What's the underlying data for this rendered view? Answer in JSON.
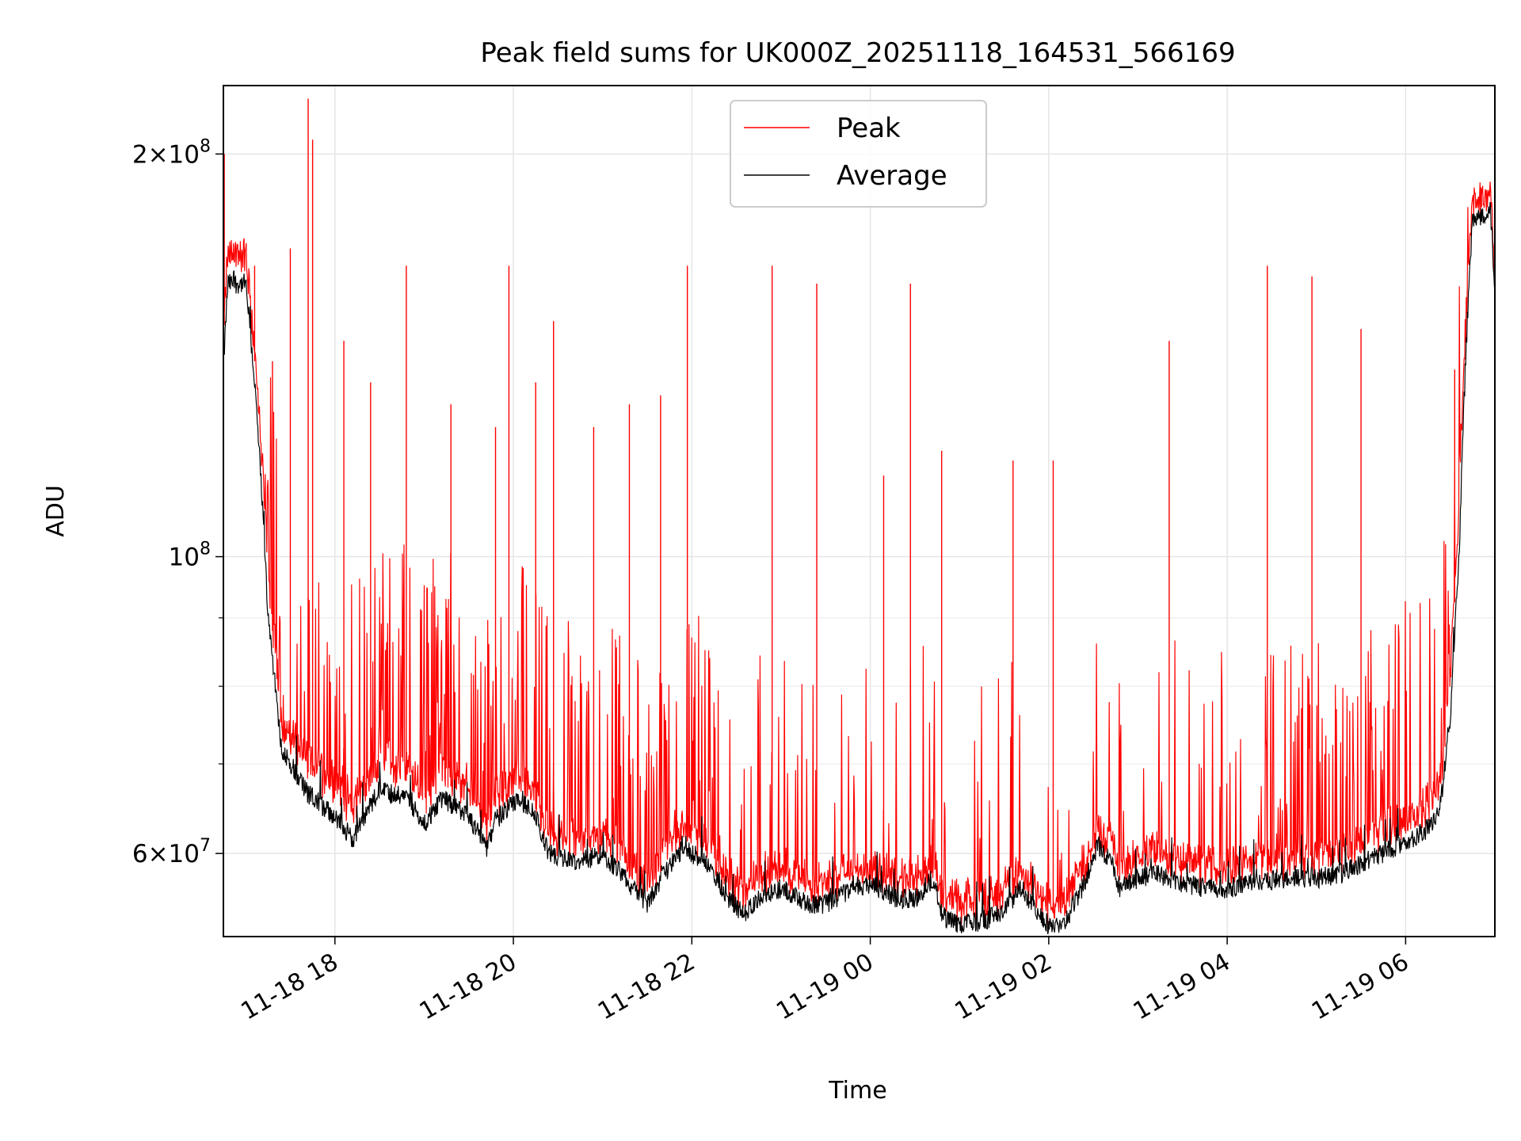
{
  "chart_data": {
    "type": "line",
    "title": "Peak field sums for UK000Z_20251118_164531_566169",
    "xlabel": "Time",
    "ylabel": "ADU",
    "yscale": "log",
    "ylim": [
      52000000,
      225000000
    ],
    "xlim_hours": [
      16.75,
      31.0
    ],
    "grid": true,
    "legend_loc": "upper center",
    "x_ticks": [
      {
        "hour": 18,
        "label": "11-18 18"
      },
      {
        "hour": 20,
        "label": "11-18 20"
      },
      {
        "hour": 22,
        "label": "11-18 22"
      },
      {
        "hour": 24,
        "label": "11-19 00"
      },
      {
        "hour": 26,
        "label": "11-19 02"
      },
      {
        "hour": 28,
        "label": "11-19 04"
      },
      {
        "hour": 30,
        "label": "11-19 06"
      }
    ],
    "y_major_ticks": [
      {
        "value": 60000000,
        "mant": "6",
        "exp": "7"
      },
      {
        "value": 100000000,
        "mant": "",
        "exp": "8"
      },
      {
        "value": 200000000,
        "mant": "2",
        "exp": "8"
      }
    ],
    "y_minor_gridlines": [
      70000000,
      80000000,
      90000000
    ],
    "series": [
      {
        "name": "Peak",
        "color": "#ff0000",
        "baseline": [
          [
            16.75,
            145000000
          ],
          [
            16.8,
            165000000
          ],
          [
            17.0,
            165000000
          ],
          [
            17.1,
            140000000
          ],
          [
            17.25,
            95000000
          ],
          [
            17.4,
            74000000
          ],
          [
            17.7,
            69000000
          ],
          [
            18.0,
            66500000
          ],
          [
            18.2,
            64000000
          ],
          [
            18.5,
            69000000
          ],
          [
            18.8,
            68000000
          ],
          [
            19.0,
            65000000
          ],
          [
            19.2,
            68000000
          ],
          [
            19.5,
            66000000
          ],
          [
            19.7,
            62000000
          ],
          [
            19.8,
            65000000
          ],
          [
            20.0,
            66500000
          ],
          [
            20.2,
            66000000
          ],
          [
            20.4,
            61000000
          ],
          [
            20.7,
            60000000
          ],
          [
            21.0,
            61000000
          ],
          [
            21.3,
            58000000
          ],
          [
            21.5,
            55500000
          ],
          [
            21.7,
            59000000
          ],
          [
            21.9,
            61500000
          ],
          [
            22.2,
            60000000
          ],
          [
            22.4,
            56500000
          ],
          [
            22.6,
            55000000
          ],
          [
            22.8,
            57000000
          ],
          [
            23.0,
            57500000
          ],
          [
            23.3,
            56000000
          ],
          [
            23.5,
            56000000
          ],
          [
            23.8,
            57000000
          ],
          [
            24.0,
            57500000
          ],
          [
            24.3,
            56500000
          ],
          [
            24.5,
            56500000
          ],
          [
            24.7,
            58000000
          ],
          [
            24.8,
            55000000
          ],
          [
            25.0,
            54000000
          ],
          [
            25.3,
            54500000
          ],
          [
            25.5,
            55500000
          ],
          [
            25.7,
            57000000
          ],
          [
            25.8,
            56000000
          ],
          [
            26.0,
            54000000
          ],
          [
            26.2,
            54500000
          ],
          [
            26.4,
            58000000
          ],
          [
            26.55,
            61500000
          ],
          [
            26.7,
            60000000
          ],
          [
            26.8,
            57500000
          ],
          [
            27.0,
            58500000
          ],
          [
            27.2,
            59000000
          ],
          [
            27.5,
            58000000
          ],
          [
            27.8,
            57500000
          ],
          [
            28.0,
            57500000
          ],
          [
            28.3,
            58000000
          ],
          [
            28.6,
            58500000
          ],
          [
            29.0,
            58500000
          ],
          [
            29.3,
            59000000
          ],
          [
            29.6,
            60500000
          ],
          [
            30.0,
            62000000
          ],
          [
            30.3,
            64000000
          ],
          [
            30.4,
            68000000
          ],
          [
            30.5,
            80000000
          ],
          [
            30.6,
            105000000
          ],
          [
            30.7,
            160000000
          ],
          [
            30.75,
            180000000
          ],
          [
            30.95,
            185000000
          ],
          [
            31.0,
            160000000
          ]
        ],
        "spikes": [
          [
            16.76,
            200000000
          ],
          [
            17.1,
            165000000
          ],
          [
            17.3,
            140000000
          ],
          [
            17.5,
            170000000
          ],
          [
            17.7,
            220000000
          ],
          [
            17.75,
            205000000
          ],
          [
            18.1,
            145000000
          ],
          [
            18.4,
            135000000
          ],
          [
            18.8,
            165000000
          ],
          [
            19.3,
            130000000
          ],
          [
            19.8,
            125000000
          ],
          [
            19.95,
            165000000
          ],
          [
            20.25,
            135000000
          ],
          [
            20.45,
            150000000
          ],
          [
            20.9,
            125000000
          ],
          [
            21.3,
            130000000
          ],
          [
            21.65,
            132000000
          ],
          [
            21.95,
            165000000
          ],
          [
            22.9,
            165000000
          ],
          [
            23.4,
            160000000
          ],
          [
            24.15,
            115000000
          ],
          [
            24.45,
            160000000
          ],
          [
            24.8,
            120000000
          ],
          [
            25.6,
            118000000
          ],
          [
            26.05,
            118000000
          ],
          [
            27.35,
            145000000
          ],
          [
            28.45,
            165000000
          ],
          [
            28.95,
            162000000
          ],
          [
            29.5,
            148000000
          ],
          [
            30.55,
            138000000
          ],
          [
            30.85,
            188000000
          ]
        ]
      },
      {
        "name": "Average",
        "color": "#000000",
        "baseline": [
          [
            16.75,
            138000000
          ],
          [
            16.8,
            160000000
          ],
          [
            17.0,
            160000000
          ],
          [
            17.1,
            135000000
          ],
          [
            17.25,
            90000000
          ],
          [
            17.4,
            72000000
          ],
          [
            17.7,
            66500000
          ],
          [
            18.0,
            64000000
          ],
          [
            18.2,
            61500000
          ],
          [
            18.5,
            67000000
          ],
          [
            18.8,
            66000000
          ],
          [
            19.0,
            63000000
          ],
          [
            19.2,
            66000000
          ],
          [
            19.5,
            64000000
          ],
          [
            19.7,
            60500000
          ],
          [
            19.8,
            63500000
          ],
          [
            20.0,
            65500000
          ],
          [
            20.2,
            65000000
          ],
          [
            20.4,
            60000000
          ],
          [
            20.7,
            59000000
          ],
          [
            21.0,
            60000000
          ],
          [
            21.3,
            57000000
          ],
          [
            21.5,
            55000000
          ],
          [
            21.7,
            58000000
          ],
          [
            21.9,
            60500000
          ],
          [
            22.2,
            59000000
          ],
          [
            22.4,
            55500000
          ],
          [
            22.6,
            54000000
          ],
          [
            22.8,
            56000000
          ],
          [
            23.0,
            56500000
          ],
          [
            23.3,
            55000000
          ],
          [
            23.5,
            55000000
          ],
          [
            23.8,
            56500000
          ],
          [
            24.0,
            57000000
          ],
          [
            24.3,
            55500000
          ],
          [
            24.5,
            55500000
          ],
          [
            24.7,
            57500000
          ],
          [
            24.8,
            54000000
          ],
          [
            25.0,
            53000000
          ],
          [
            25.3,
            53500000
          ],
          [
            25.5,
            54500000
          ],
          [
            25.7,
            56500000
          ],
          [
            25.8,
            55000000
          ],
          [
            26.0,
            53000000
          ],
          [
            26.2,
            53500000
          ],
          [
            26.4,
            57000000
          ],
          [
            26.55,
            61000000
          ],
          [
            26.7,
            59000000
          ],
          [
            26.8,
            56500000
          ],
          [
            27.0,
            57500000
          ],
          [
            27.2,
            58000000
          ],
          [
            27.5,
            57000000
          ],
          [
            27.8,
            56500000
          ],
          [
            28.0,
            56500000
          ],
          [
            28.3,
            57000000
          ],
          [
            28.6,
            57500000
          ],
          [
            29.0,
            57500000
          ],
          [
            29.3,
            58000000
          ],
          [
            29.6,
            59500000
          ],
          [
            30.0,
            61000000
          ],
          [
            30.3,
            63000000
          ],
          [
            30.4,
            66000000
          ],
          [
            30.5,
            75000000
          ],
          [
            30.6,
            100000000
          ],
          [
            30.7,
            155000000
          ],
          [
            30.75,
            178000000
          ],
          [
            30.95,
            182000000
          ],
          [
            31.0,
            158000000
          ]
        ]
      }
    ]
  }
}
